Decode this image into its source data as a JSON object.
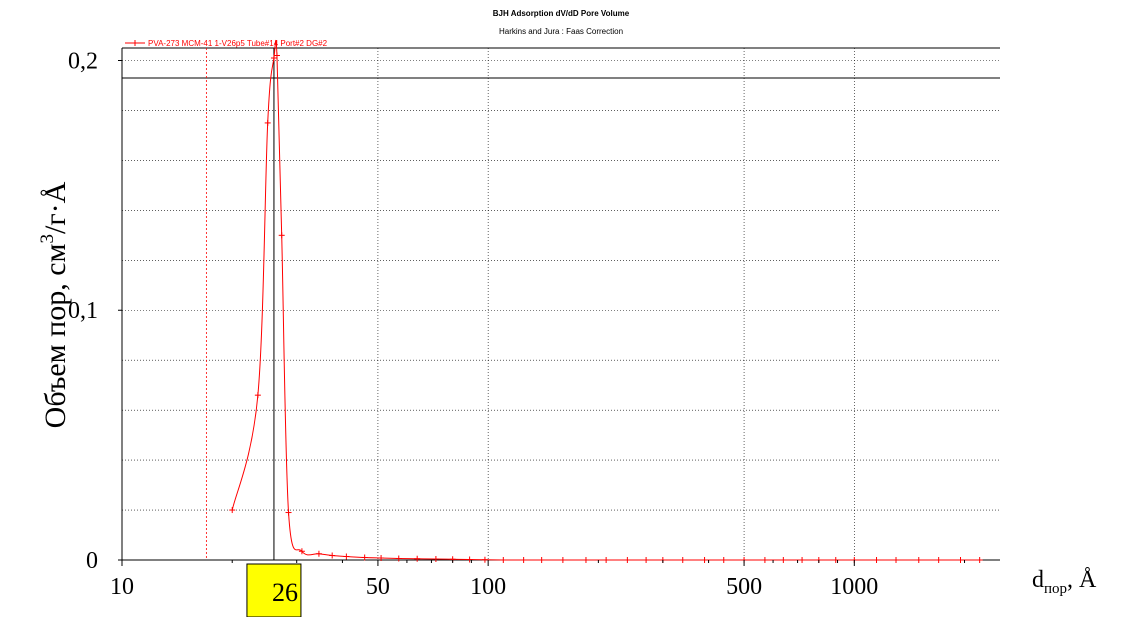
{
  "chart_data": {
    "type": "line",
    "title": "BJH Adsorption dV/dD Pore Volume",
    "subtitle": "Harkins and Jura : Faas Correction",
    "ylabel_main": "Объем пор, см",
    "ylabel_sup": "3",
    "ylabel_tail": "/г·Å",
    "xlabel_main": "d",
    "xlabel_sub": "пор",
    "xlabel_tail": ", Å",
    "x_scale": "log",
    "xlim": [
      10,
      2500
    ],
    "ylim": [
      0,
      0.205
    ],
    "grid": true,
    "legend_position": "top-left",
    "x_ticks": [
      {
        "value": 10,
        "label": "10"
      },
      {
        "value": 50,
        "label": "50"
      },
      {
        "value": 100,
        "label": "100"
      },
      {
        "value": 500,
        "label": "500"
      },
      {
        "value": 1000,
        "label": "1000"
      }
    ],
    "y_ticks": [
      {
        "value": 0,
        "label": "0"
      },
      {
        "value": 0.1,
        "label": "0,1"
      },
      {
        "value": 0.2,
        "label": "0,2"
      }
    ],
    "highlight": {
      "value": 26,
      "label": "26",
      "color": "#ffff00"
    },
    "reference_lines": {
      "vertical_x": 26,
      "horizontal_y": 0.193,
      "dotted_x": 17
    },
    "series": [
      {
        "name": "PVA-273 MCM-41 1-V26p5 Tube#14 Port#2 DG#2",
        "color": "#ff0000",
        "x": [
          20.0,
          23.5,
          25.0,
          26.0,
          26.5,
          27.3,
          28.5,
          31.0,
          34.5,
          37.5,
          41.0,
          46.0,
          51.0,
          57.0,
          64.0,
          72.0,
          80.0,
          89.0,
          98.0,
          110.0,
          125.0,
          140.0,
          160.0,
          185.0,
          210.0,
          240.0,
          270.0,
          300.0,
          340.0,
          390.0,
          440.0,
          500.0,
          570.0,
          640.0,
          720.0,
          800.0,
          890.0,
          1000.0,
          1150.0,
          1300.0,
          1500.0,
          1700.0,
          1950.0,
          2200.0
        ],
        "values": [
          0.02,
          0.066,
          0.175,
          0.201,
          0.202,
          0.13,
          0.019,
          0.0035,
          0.0025,
          0.0018,
          0.0014,
          0.001,
          0.0008,
          0.0006,
          0.0005,
          0.0004,
          0.0003,
          0.0002,
          0.0001,
          0.0,
          0.0,
          0.0,
          0.0,
          0.0,
          0.0,
          0.0,
          0.0,
          0.0,
          0.0,
          0.0,
          0.0,
          0.0,
          0.0,
          0.0,
          0.0,
          0.0,
          0.0,
          0.0,
          0.0,
          0.0,
          0.0,
          0.0,
          0.0,
          0.0
        ]
      }
    ]
  }
}
